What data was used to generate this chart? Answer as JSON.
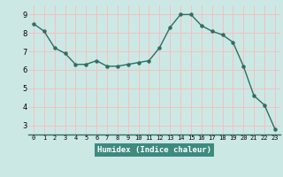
{
  "x": [
    0,
    1,
    2,
    3,
    4,
    5,
    6,
    7,
    8,
    9,
    10,
    11,
    12,
    13,
    14,
    15,
    16,
    17,
    18,
    19,
    20,
    21,
    22,
    23
  ],
  "y": [
    8.5,
    8.1,
    7.2,
    6.9,
    6.3,
    6.3,
    6.5,
    6.2,
    6.2,
    6.3,
    6.4,
    6.5,
    7.2,
    8.3,
    9.0,
    9.0,
    8.4,
    8.1,
    7.9,
    7.5,
    6.2,
    4.6,
    4.1,
    2.8
  ],
  "xlabel": "Humidex (Indice chaleur)",
  "ylim": [
    2.5,
    9.5
  ],
  "xlim": [
    -0.5,
    23.5
  ],
  "yticks": [
    3,
    4,
    5,
    6,
    7,
    8,
    9
  ],
  "xticks": [
    0,
    1,
    2,
    3,
    4,
    5,
    6,
    7,
    8,
    9,
    10,
    11,
    12,
    13,
    14,
    15,
    16,
    17,
    18,
    19,
    20,
    21,
    22,
    23
  ],
  "line_color": "#2d6e65",
  "marker_color": "#2d6e65",
  "bg_color": "#cce8e4",
  "grid_color": "#f5c0c0",
  "xlabel_color": "#2d6e65",
  "tick_color": "#000000",
  "xlabel_bg": "#3d8a7e"
}
